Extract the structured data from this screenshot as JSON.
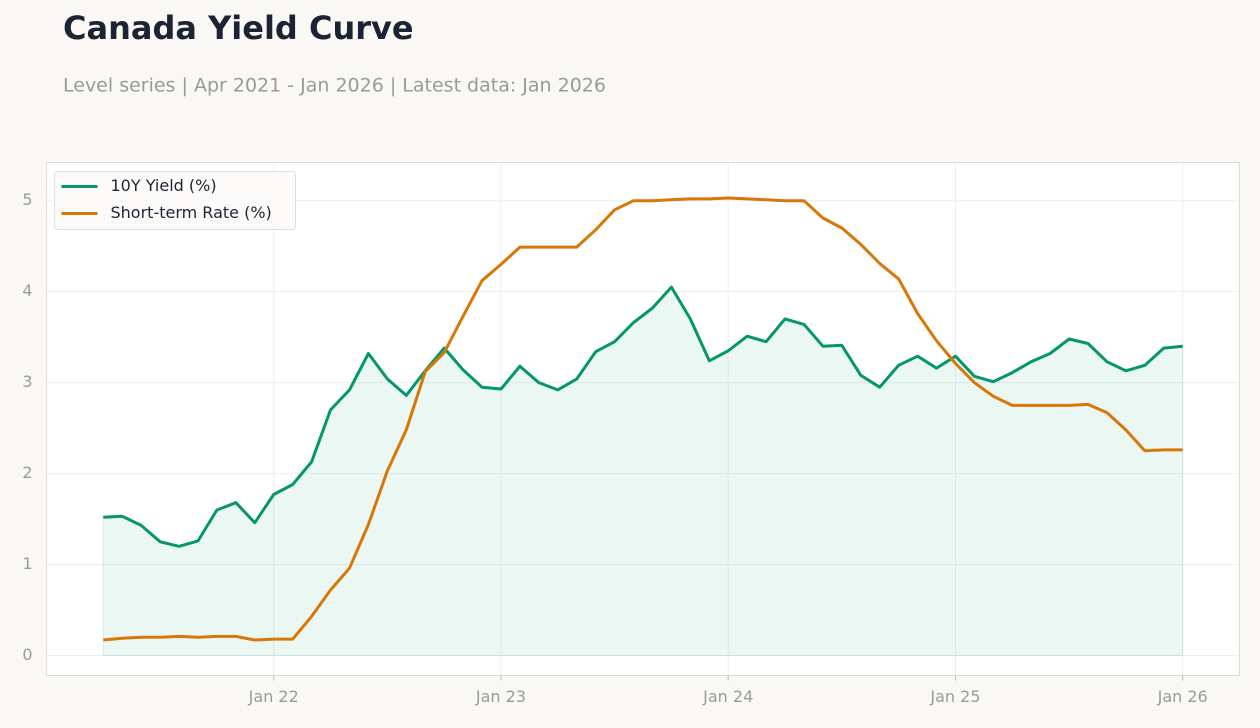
{
  "chart_data": {
    "type": "line",
    "title": "Canada Yield Curve",
    "subtitle": "Level series | Apr 2021 - Jan 2026 | Latest data: Jan 2026",
    "x": [
      "2021-04",
      "2021-05",
      "2021-06",
      "2021-07",
      "2021-08",
      "2021-09",
      "2021-10",
      "2021-11",
      "2021-12",
      "2022-01",
      "2022-02",
      "2022-03",
      "2022-04",
      "2022-05",
      "2022-06",
      "2022-07",
      "2022-08",
      "2022-09",
      "2022-10",
      "2022-11",
      "2022-12",
      "2023-01",
      "2023-02",
      "2023-03",
      "2023-04",
      "2023-05",
      "2023-06",
      "2023-07",
      "2023-08",
      "2023-09",
      "2023-10",
      "2023-11",
      "2023-12",
      "2024-01",
      "2024-02",
      "2024-03",
      "2024-04",
      "2024-05",
      "2024-06",
      "2024-07",
      "2024-08",
      "2024-09",
      "2024-10",
      "2024-11",
      "2024-12",
      "2025-01",
      "2025-02",
      "2025-03",
      "2025-04",
      "2025-05",
      "2025-06",
      "2025-07",
      "2025-08",
      "2025-09",
      "2025-10",
      "2025-11",
      "2025-12",
      "2026-01"
    ],
    "series": [
      {
        "name": "10Y Yield (%)",
        "color": "#059669",
        "fill": true,
        "values": [
          1.52,
          1.53,
          1.43,
          1.25,
          1.2,
          1.26,
          1.6,
          1.68,
          1.46,
          1.77,
          1.88,
          2.13,
          2.7,
          2.92,
          3.32,
          3.04,
          2.86,
          3.13,
          3.38,
          3.14,
          2.95,
          2.93,
          3.18,
          3.0,
          2.92,
          3.04,
          3.34,
          3.45,
          3.66,
          3.82,
          4.05,
          3.7,
          3.24,
          3.35,
          3.51,
          3.45,
          3.7,
          3.64,
          3.4,
          3.41,
          3.08,
          2.95,
          3.19,
          3.29,
          3.16,
          3.29,
          3.07,
          3.01,
          3.11,
          3.23,
          3.32,
          3.48,
          3.43,
          3.23,
          3.13,
          3.19,
          3.38,
          3.4
        ]
      },
      {
        "name": "Short-term Rate (%)",
        "color": "#d97706",
        "fill": false,
        "values": [
          0.17,
          0.19,
          0.2,
          0.2,
          0.21,
          0.2,
          0.21,
          0.21,
          0.17,
          0.18,
          0.18,
          0.43,
          0.72,
          0.96,
          1.44,
          2.03,
          2.48,
          3.12,
          3.33,
          3.73,
          4.12,
          4.3,
          4.49,
          4.49,
          4.49,
          4.49,
          4.68,
          4.9,
          5.0,
          5.0,
          5.01,
          5.02,
          5.02,
          5.03,
          5.02,
          5.01,
          5.0,
          5.0,
          4.81,
          4.7,
          4.52,
          4.31,
          4.14,
          3.76,
          3.46,
          3.21,
          3.0,
          2.85,
          2.75,
          2.75,
          2.75,
          2.75,
          2.76,
          2.67,
          2.48,
          2.25,
          2.26,
          2.26
        ]
      }
    ],
    "xlim": [
      "2021-01",
      "2026-04"
    ],
    "xticks": [
      {
        "value": "2022-01",
        "label": "Jan 22"
      },
      {
        "value": "2023-01",
        "label": "Jan 23"
      },
      {
        "value": "2024-01",
        "label": "Jan 24"
      },
      {
        "value": "2025-01",
        "label": "Jan 25"
      },
      {
        "value": "2026-01",
        "label": "Jan 26"
      }
    ],
    "ylim": [
      -0.22,
      5.42
    ],
    "yticks": [
      0,
      1,
      2,
      3,
      4,
      5
    ],
    "grid": true,
    "legend": "upper-left"
  }
}
